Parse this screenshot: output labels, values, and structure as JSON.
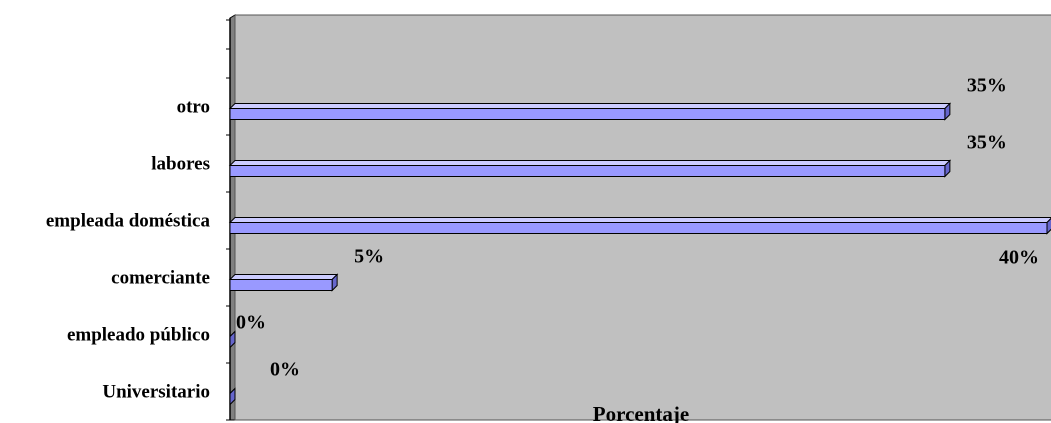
{
  "chart_data": {
    "type": "bar",
    "orientation": "horizontal",
    "categories": [
      "otro",
      "labores",
      "empleada doméstica",
      "comerciante",
      "empleado público",
      "Universitario"
    ],
    "values": [
      35,
      35,
      40,
      5,
      0,
      0
    ],
    "value_labels": [
      "35%",
      "35%",
      "40%",
      "5%",
      "0%",
      "0%"
    ],
    "xlabel": "Porcentaje",
    "xlim": [
      0,
      40
    ],
    "grid": false,
    "legend": "none",
    "colors": {
      "plot_bg": "#c0c0c0",
      "bar_fill": "#9999ff",
      "bar_top": "#ccccff",
      "bar_side": "#6666cc",
      "wall_side": "#808080"
    }
  }
}
